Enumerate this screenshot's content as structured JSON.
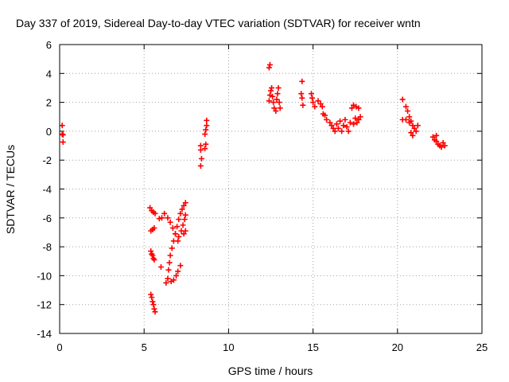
{
  "chart_data": {
    "type": "scatter",
    "title": "Day 337 of 2019, Sidereal Day-to-day VTEC variation (SDTVAR) for receiver wntn",
    "xlabel": "GPS time / hours",
    "ylabel": "SDTVAR / TECUs",
    "xlim": [
      0,
      25
    ],
    "ylim": [
      -14,
      6
    ],
    "xticks": [
      0,
      5,
      10,
      15,
      20,
      25
    ],
    "xtick_labels": [
      "0",
      "5",
      "10",
      "15",
      "20",
      "25"
    ],
    "yticks": [
      -14,
      -12,
      -10,
      -8,
      -6,
      -4,
      -2,
      0,
      2,
      4,
      6
    ],
    "ytick_labels": [
      "-14",
      "-12",
      "-10",
      "-8",
      "-6",
      "-4",
      "-2",
      "0",
      "2",
      "4",
      "6"
    ],
    "grid": true,
    "marker": "+",
    "color": "#ff0000",
    "series": [
      {
        "name": "SDTVAR",
        "points": [
          [
            0.15,
            0.4
          ],
          [
            0.15,
            -0.2
          ],
          [
            0.2,
            -0.25
          ],
          [
            0.2,
            -0.75
          ],
          [
            5.4,
            -11.3
          ],
          [
            5.45,
            -11.5
          ],
          [
            5.5,
            -11.8
          ],
          [
            5.55,
            -12.0
          ],
          [
            5.6,
            -12.3
          ],
          [
            5.65,
            -12.5
          ],
          [
            5.4,
            -8.3
          ],
          [
            5.45,
            -8.5
          ],
          [
            5.5,
            -8.6
          ],
          [
            5.55,
            -8.8
          ],
          [
            5.6,
            -8.9
          ],
          [
            5.4,
            -6.9
          ],
          [
            5.5,
            -6.8
          ],
          [
            5.6,
            -6.7
          ],
          [
            5.35,
            -5.3
          ],
          [
            5.45,
            -5.5
          ],
          [
            5.55,
            -5.6
          ],
          [
            5.65,
            -5.7
          ],
          [
            5.9,
            -6.05
          ],
          [
            6.05,
            -6.0
          ],
          [
            6.0,
            -9.4
          ],
          [
            6.2,
            -5.7
          ],
          [
            6.4,
            -6.0
          ],
          [
            6.55,
            -6.3
          ],
          [
            6.7,
            -6.7
          ],
          [
            6.85,
            -7.1
          ],
          [
            7.0,
            -7.6
          ],
          [
            6.3,
            -10.5
          ],
          [
            6.4,
            -10.2
          ],
          [
            6.45,
            -9.6
          ],
          [
            6.5,
            -9.1
          ],
          [
            6.55,
            -8.6
          ],
          [
            6.65,
            -8.1
          ],
          [
            6.75,
            -7.6
          ],
          [
            6.85,
            -7.1
          ],
          [
            6.95,
            -6.6
          ],
          [
            7.05,
            -6.1
          ],
          [
            7.15,
            -5.7
          ],
          [
            7.25,
            -5.4
          ],
          [
            7.35,
            -5.15
          ],
          [
            7.45,
            -4.95
          ],
          [
            6.6,
            -10.4
          ],
          [
            6.75,
            -10.3
          ],
          [
            6.9,
            -10.0
          ],
          [
            7.0,
            -9.7
          ],
          [
            7.15,
            -9.3
          ],
          [
            7.05,
            -7.3
          ],
          [
            7.2,
            -6.9
          ],
          [
            7.3,
            -6.5
          ],
          [
            7.4,
            -6.1
          ],
          [
            7.45,
            -5.8
          ],
          [
            7.35,
            -7.1
          ],
          [
            7.45,
            -6.9
          ],
          [
            8.35,
            -2.4
          ],
          [
            8.4,
            -1.9
          ],
          [
            8.35,
            -1.3
          ],
          [
            8.35,
            -1.0
          ],
          [
            8.6,
            -1.2
          ],
          [
            8.65,
            -0.9
          ],
          [
            8.6,
            -0.2
          ],
          [
            8.65,
            0.1
          ],
          [
            8.7,
            0.4
          ],
          [
            8.7,
            0.75
          ],
          [
            12.4,
            4.4
          ],
          [
            12.45,
            4.6
          ],
          [
            12.4,
            2.1
          ],
          [
            12.45,
            2.5
          ],
          [
            12.5,
            2.8
          ],
          [
            12.55,
            3.0
          ],
          [
            12.6,
            2.4
          ],
          [
            12.65,
            2.0
          ],
          [
            12.7,
            1.6
          ],
          [
            12.8,
            1.4
          ],
          [
            12.85,
            2.2
          ],
          [
            12.9,
            2.6
          ],
          [
            12.95,
            3.0
          ],
          [
            13.0,
            2.0
          ],
          [
            13.05,
            1.6
          ],
          [
            14.35,
            3.45
          ],
          [
            14.3,
            2.6
          ],
          [
            14.35,
            2.3
          ],
          [
            14.4,
            1.8
          ],
          [
            14.9,
            2.6
          ],
          [
            14.95,
            2.3
          ],
          [
            15.0,
            2.0
          ],
          [
            15.1,
            1.7
          ],
          [
            15.3,
            2.1
          ],
          [
            15.45,
            1.9
          ],
          [
            15.55,
            1.7
          ],
          [
            15.6,
            1.2
          ],
          [
            15.7,
            1.1
          ],
          [
            15.8,
            0.8
          ],
          [
            16.0,
            0.6
          ],
          [
            16.1,
            0.4
          ],
          [
            16.2,
            0.2
          ],
          [
            16.3,
            0.0
          ],
          [
            16.4,
            0.5
          ],
          [
            16.5,
            0.2
          ],
          [
            16.6,
            0.7
          ],
          [
            16.7,
            0.0
          ],
          [
            16.8,
            0.4
          ],
          [
            16.9,
            0.8
          ],
          [
            17.0,
            0.3
          ],
          [
            17.1,
            0.0
          ],
          [
            17.2,
            0.6
          ],
          [
            17.4,
            0.5
          ],
          [
            17.5,
            0.9
          ],
          [
            17.6,
            0.6
          ],
          [
            17.7,
            0.8
          ],
          [
            17.8,
            1.0
          ],
          [
            17.3,
            1.6
          ],
          [
            17.4,
            1.8
          ],
          [
            17.55,
            1.7
          ],
          [
            17.7,
            1.6
          ],
          [
            20.3,
            2.2
          ],
          [
            20.5,
            1.7
          ],
          [
            20.6,
            1.4
          ],
          [
            20.7,
            1.0
          ],
          [
            20.8,
            0.7
          ],
          [
            20.9,
            0.4
          ],
          [
            21.0,
            0.2
          ],
          [
            21.1,
            0.0
          ],
          [
            21.2,
            0.4
          ],
          [
            20.3,
            0.8
          ],
          [
            20.5,
            0.8
          ],
          [
            20.7,
            0.6
          ],
          [
            20.8,
            -0.1
          ],
          [
            20.9,
            -0.3
          ],
          [
            22.1,
            -0.4
          ],
          [
            22.2,
            -0.6
          ],
          [
            22.3,
            -0.7
          ],
          [
            22.4,
            -0.9
          ],
          [
            22.5,
            -1.0
          ],
          [
            22.6,
            -1.1
          ],
          [
            22.7,
            -0.8
          ],
          [
            22.8,
            -1.0
          ],
          [
            22.3,
            -0.3
          ]
        ]
      }
    ]
  }
}
